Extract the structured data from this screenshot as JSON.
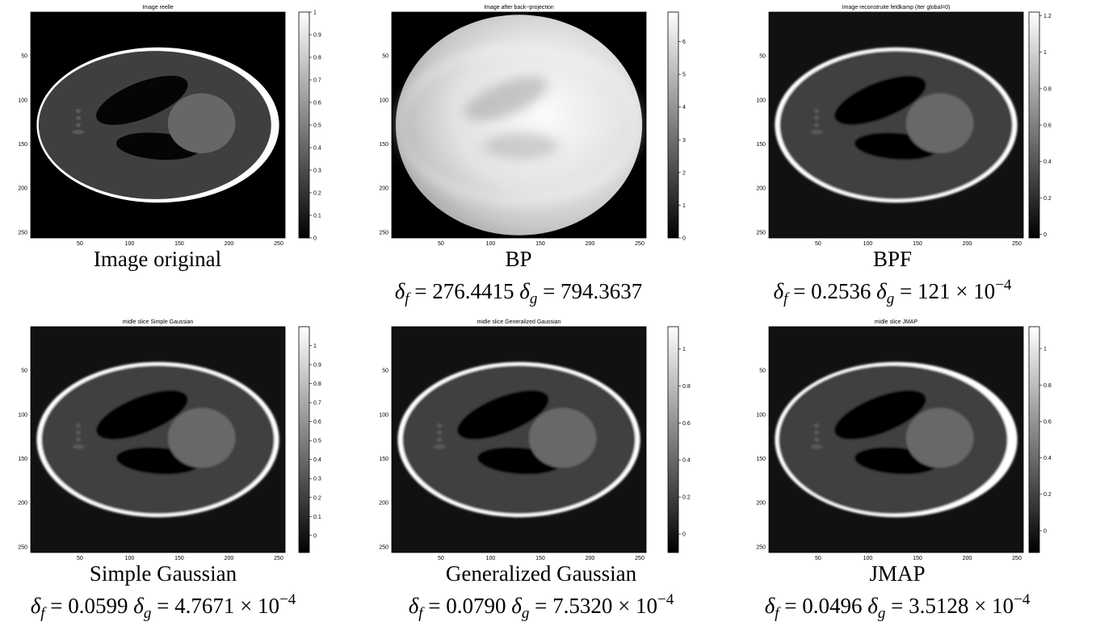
{
  "extent": [
    0.5,
    256.5
  ],
  "panels": [
    {
      "title": "Image reelle",
      "xticks": [
        50,
        100,
        150,
        200,
        250
      ],
      "yticks": [
        50,
        100,
        150,
        200,
        250
      ],
      "colorbar": {
        "lim": [
          0,
          1
        ],
        "ticks": [
          0,
          0.1,
          0.2,
          0.3,
          0.4,
          0.5,
          0.6,
          0.7,
          0.8,
          0.9,
          1
        ]
      },
      "caption": "Image original"
    },
    {
      "title": "Image after back−projection",
      "xticks": [
        50,
        100,
        150,
        200,
        250
      ],
      "yticks": [
        50,
        100,
        150,
        200,
        250
      ],
      "colorbar": {
        "lim": [
          0,
          6.9
        ],
        "ticks": [
          0,
          1,
          2,
          3,
          4,
          5,
          6
        ]
      },
      "caption": "BP",
      "metric": {
        "f_symbol": "δ",
        "f_sub": "f",
        "f_value": " = 276.4415 ",
        "g_symbol": "δ",
        "g_sub": "g",
        "g_value": " = 794.3637"
      }
    },
    {
      "title": "Image reconstruite feldkamp (Iter global=0)",
      "xticks": [
        50,
        100,
        150,
        200,
        250
      ],
      "yticks": [
        50,
        100,
        150,
        200,
        250
      ],
      "colorbar": {
        "lim": [
          -0.02,
          1.22
        ],
        "ticks": [
          0,
          0.2,
          0.4,
          0.6,
          0.8,
          1,
          1.2
        ]
      },
      "caption": "BPF",
      "metric": {
        "f_symbol": "δ",
        "f_sub": "f",
        "f_value": " = 0.2536 ",
        "g_symbol": "δ",
        "g_sub": "g",
        "g_value": " = 121 × 10",
        "g_exp": "−4"
      }
    },
    {
      "title": "midle slice Simple Gaussian",
      "xticks": [
        50,
        100,
        150,
        200,
        250
      ],
      "yticks": [
        50,
        100,
        150,
        200,
        250
      ],
      "colorbar": {
        "lim": [
          -0.09,
          1.1
        ],
        "ticks": [
          0,
          0.1,
          0.2,
          0.3,
          0.4,
          0.5,
          0.6,
          0.7,
          0.8,
          0.9,
          1
        ]
      },
      "caption": "Simple Gaussian",
      "metric": {
        "f_symbol": "δ",
        "f_sub": "f",
        "f_value": " = 0.0599 ",
        "g_symbol": "δ",
        "g_sub": "g",
        "g_value": " = 4.7671 × 10",
        "g_exp": "−4"
      }
    },
    {
      "title": "midle slice Generalized Gaussian",
      "xticks": [
        50,
        100,
        150,
        200,
        250
      ],
      "yticks": [
        50,
        100,
        150,
        200,
        250
      ],
      "colorbar": {
        "lim": [
          -0.1,
          1.12
        ],
        "ticks": [
          0,
          0.2,
          0.4,
          0.6,
          0.8,
          1
        ]
      },
      "caption": "Generalized Gaussian",
      "metric": {
        "f_symbol": "δ",
        "f_sub": "f",
        "f_value": " = 0.0790 ",
        "g_symbol": "δ",
        "g_sub": "g",
        "g_value": " = 7.5320 × 10",
        "g_exp": "−4"
      }
    },
    {
      "title": "midle slice JMAP",
      "xticks": [
        50,
        100,
        150,
        200,
        250
      ],
      "yticks": [
        50,
        100,
        150,
        200,
        250
      ],
      "colorbar": {
        "lim": [
          -0.12,
          1.12
        ],
        "ticks": [
          0,
          0.2,
          0.4,
          0.6,
          0.8,
          1
        ]
      },
      "caption": "JMAP",
      "metric": {
        "f_symbol": "δ",
        "f_sub": "f",
        "f_value": " = 0.0496 ",
        "g_symbol": "δ",
        "g_sub": "g",
        "g_value": " = 3.5128 × 10",
        "g_exp": "−4"
      }
    }
  ]
}
